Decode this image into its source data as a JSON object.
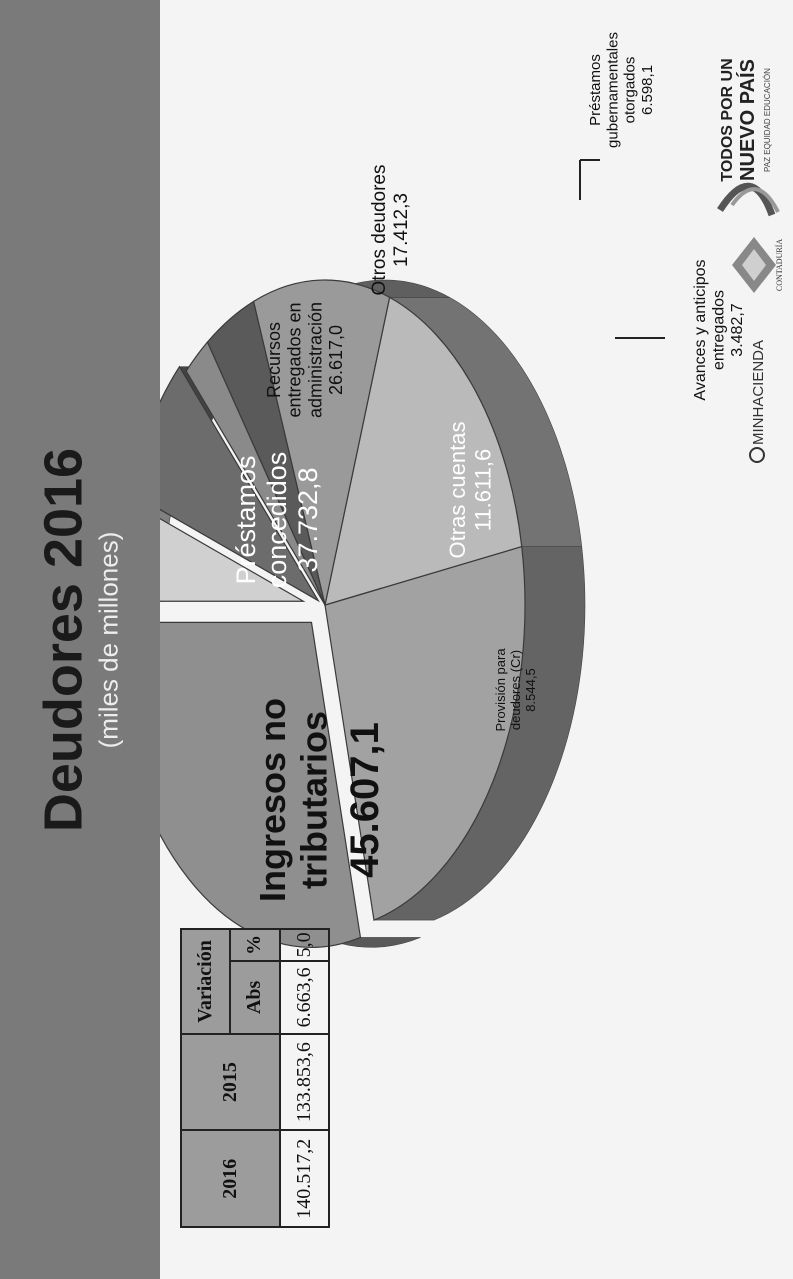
{
  "title": "Deudores 2016",
  "subtitle": "(miles de millones)",
  "chart_data": {
    "type": "pie",
    "title": "Deudores 2016",
    "subtitle": "(miles de millones)",
    "slices": [
      {
        "label": "Ingresos no tributarios",
        "value": 45607.1,
        "value_label": "45.607,1",
        "color": "#8f8f8f"
      },
      {
        "label": "Préstamos concedidos",
        "value": 37732.8,
        "value_label": "37.732,8",
        "color": "#a2a2a2"
      },
      {
        "label": "Recursos entregados en administración",
        "value": 26617.0,
        "value_label": "26.617,0",
        "color": "#bababa"
      },
      {
        "label": "Otros deudores",
        "value": 17412.3,
        "value_label": "17.412,3",
        "color": "#9a9a9a"
      },
      {
        "label": "Préstamos gubernamentales otorgados",
        "value": 6598.1,
        "value_label": "6.598,1",
        "color": "#5a5a5a"
      },
      {
        "label": "Avances y anticipos entregados",
        "value": 3482.7,
        "value_label": "3.482,7",
        "color": "#8a8a8a"
      },
      {
        "label": "Otras cuentas",
        "value": 11611.6,
        "value_label": "11.611,6",
        "color": "#6c6c6c"
      },
      {
        "label": "Provisión para deudores (Cr)",
        "value": 8544.5,
        "value_label": "8.544,5",
        "color": "#d0d0d0"
      }
    ]
  },
  "table": {
    "headers": [
      "2016",
      "2015",
      "Variación"
    ],
    "subheaders": [
      "Abs",
      "%"
    ],
    "values": [
      "140.517,2",
      "133.853,6",
      "6.663,6",
      "5,0"
    ]
  },
  "logos": {
    "minhacienda": "MINHACIENDA",
    "contaduria": "CONTADURÍA",
    "todos_line1": "TODOS POR UN",
    "todos_line2": "NUEVO PAÍS",
    "todos_line3": "PAZ  EQUIDAD  EDUCACIÓN"
  }
}
